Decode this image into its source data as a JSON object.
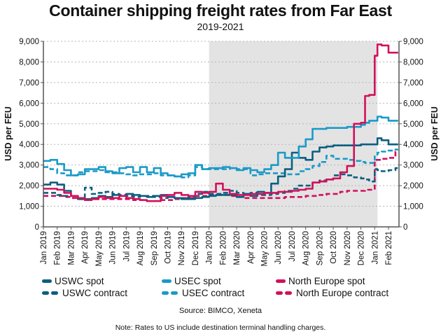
{
  "chart_data": {
    "type": "line",
    "title": "Container shipping freight rates from Far East",
    "subtitle": "2019-2021",
    "ylabel": "USD per FEU",
    "ylabel_right": "USD per FEU",
    "xlabel": "",
    "ylim": [
      0,
      9000
    ],
    "yticks": [
      "0",
      "1,000",
      "2,000",
      "3,000",
      "4,000",
      "5,000",
      "6,000",
      "7,000",
      "8,000",
      "9,000"
    ],
    "ytick_values": [
      0,
      1000,
      2000,
      3000,
      4000,
      5000,
      6000,
      7000,
      8000,
      9000
    ],
    "xtick_labels": [
      "Jan 2019",
      "Feb 2019",
      "Mar 2019",
      "Apr 2019",
      "May 2019",
      "Jun 2019",
      "Jul 2019",
      "Aug 2019",
      "Sep 2019",
      "Oct 2019",
      "Nov 2019",
      "Dec 2019",
      "Jan 2020",
      "Feb 2020",
      "Mar 2020",
      "Apr 2020",
      "May 2020",
      "Jun 2020",
      "Jul 2020",
      "Aug 2020",
      "Sep 2020",
      "Oct 2020",
      "Nov 2020",
      "Dec 2020",
      "Jan 2021",
      "Feb 2021"
    ],
    "x_unit": "months since Jan 2019",
    "xlim": [
      0,
      25.7
    ],
    "shaded_period": {
      "from": 12,
      "to": 24.2
    },
    "grid": true,
    "legend_position": "bottom",
    "x": [
      0,
      0.5,
      1,
      1.5,
      2,
      2.5,
      3,
      3.5,
      4,
      4.5,
      5,
      5.5,
      6,
      6.5,
      7,
      7.5,
      8,
      8.5,
      9,
      9.5,
      10,
      10.5,
      11,
      11.5,
      12,
      12.5,
      13,
      13.5,
      14,
      14.5,
      15,
      15.5,
      16,
      16.5,
      17,
      17.5,
      18,
      18.5,
      19,
      19.5,
      20,
      20.5,
      21,
      21.5,
      22,
      22.5,
      23,
      23.3,
      23.6,
      24,
      24.2,
      24.5,
      25,
      25.5,
      25.7
    ],
    "series": [
      {
        "name": "USWC spot",
        "style": "solid",
        "color": "#0b5f80",
        "values": [
          2050,
          2150,
          2050,
          1750,
          1500,
          1350,
          1350,
          1400,
          1500,
          1450,
          1550,
          1500,
          1600,
          1550,
          1500,
          1450,
          1500,
          1550,
          1450,
          1400,
          1350,
          1350,
          1400,
          1450,
          1500,
          1550,
          1550,
          1550,
          1450,
          1600,
          1500,
          1700,
          1650,
          2100,
          2450,
          2800,
          3600,
          3350,
          3250,
          3650,
          3850,
          3900,
          3950,
          3950,
          3950,
          3950,
          4000,
          4000,
          4000,
          4000,
          4300,
          4200,
          4000,
          4000,
          4000
        ]
      },
      {
        "name": "USEC spot",
        "style": "solid",
        "color": "#1a9ac8",
        "values": [
          3200,
          3250,
          3050,
          2750,
          2500,
          2550,
          2800,
          2800,
          2900,
          2700,
          2600,
          2850,
          2900,
          2650,
          2900,
          2650,
          2850,
          2600,
          2500,
          2450,
          2550,
          2600,
          3000,
          2800,
          2850,
          2850,
          2900,
          2850,
          2750,
          2850,
          2750,
          2650,
          2800,
          3000,
          3600,
          3350,
          3350,
          3900,
          4250,
          4750,
          4750,
          4800,
          4800,
          4800,
          4850,
          4850,
          4950,
          5050,
          5150,
          5150,
          5350,
          5300,
          5150,
          5150,
          5150
        ]
      },
      {
        "name": "North Europe spot",
        "style": "solid",
        "color": "#d3105b",
        "values": [
          1850,
          1850,
          1800,
          1650,
          1500,
          1400,
          1300,
          1350,
          1450,
          1400,
          1400,
          1500,
          1400,
          1350,
          1300,
          1250,
          1250,
          1500,
          1550,
          1650,
          1550,
          1500,
          1700,
          1650,
          1700,
          2100,
          1800,
          1600,
          1550,
          1550,
          1600,
          1600,
          1650,
          1650,
          1700,
          1700,
          1750,
          1800,
          1850,
          2150,
          2200,
          2300,
          2350,
          2650,
          2950,
          5000,
          5050,
          6350,
          6400,
          8300,
          8850,
          8800,
          8450,
          8450,
          8450
        ]
      },
      {
        "name": "USWC contract",
        "style": "dashed",
        "color": "#0b5f80",
        "values": [
          1650,
          1650,
          1550,
          1500,
          1500,
          1400,
          1900,
          1600,
          1650,
          1700,
          1600,
          1550,
          1500,
          1450,
          1500,
          1500,
          1450,
          1400,
          1450,
          1400,
          1400,
          1450,
          1600,
          1700,
          1600,
          1600,
          1650,
          1750,
          1650,
          1600,
          1650,
          1550,
          1550,
          1600,
          1650,
          1750,
          1850,
          2000,
          2000,
          2150,
          2250,
          2300,
          2500,
          2550,
          2500,
          2400,
          2350,
          2300,
          2200,
          2800,
          2750,
          2700,
          2750,
          2850,
          2850
        ]
      },
      {
        "name": "USEC contract",
        "style": "dashed",
        "color": "#1a9ac8",
        "values": [
          2900,
          2800,
          2600,
          2500,
          2500,
          2650,
          2700,
          2700,
          2750,
          2650,
          2650,
          2600,
          2550,
          2500,
          2550,
          2550,
          2600,
          2500,
          2500,
          2450,
          2400,
          2500,
          2900,
          2800,
          2800,
          2800,
          2800,
          2850,
          2800,
          2800,
          2500,
          2550,
          2600,
          2600,
          2600,
          2550,
          2550,
          2700,
          2800,
          2950,
          3150,
          3450,
          3300,
          3300,
          3250,
          3200,
          3150,
          3100,
          3100,
          3500,
          3600,
          3650,
          3700,
          3750,
          3750
        ]
      },
      {
        "name": "North Europe contract",
        "style": "dashed",
        "color": "#d3105b",
        "values": [
          1500,
          1500,
          1500,
          1450,
          1400,
          1350,
          1350,
          1350,
          1350,
          1350,
          1350,
          1350,
          1350,
          1300,
          1300,
          1250,
          1250,
          1300,
          1300,
          1350,
          1400,
          1400,
          1500,
          1500,
          1550,
          1550,
          1550,
          1500,
          1450,
          1400,
          1400,
          1400,
          1400,
          1400,
          1400,
          1450,
          1450,
          1450,
          1500,
          1500,
          1550,
          1600,
          1600,
          1700,
          1750,
          1750,
          1750,
          1800,
          1800,
          3250,
          3250,
          3300,
          3350,
          3650,
          3650
        ]
      }
    ]
  },
  "legend": {
    "items": [
      {
        "label": "USWC spot",
        "color": "#0b5f80",
        "style": "solid"
      },
      {
        "label": "USEC spot",
        "color": "#1a9ac8",
        "style": "solid"
      },
      {
        "label": "North Europe spot",
        "color": "#d3105b",
        "style": "solid"
      },
      {
        "label": "USWC contract",
        "color": "#0b5f80",
        "style": "dashed"
      },
      {
        "label": "USEC contract",
        "color": "#1a9ac8",
        "style": "dashed"
      },
      {
        "label": "North Europe contract",
        "color": "#d3105b",
        "style": "dashed"
      }
    ]
  },
  "source": "Source: BIMCO, Xeneta",
  "note": "Note: Rates to US include destination terminal handling charges."
}
